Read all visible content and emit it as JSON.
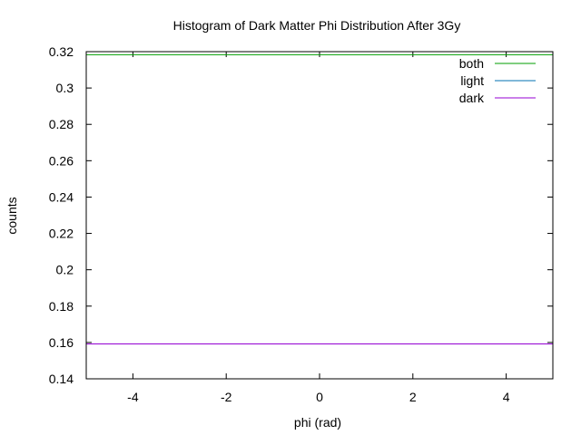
{
  "chart_data": {
    "type": "line",
    "title": "Histogram of Dark Matter Phi Distribution After 3Gy",
    "xlabel": "phi (rad)",
    "ylabel": "counts",
    "xlim": [
      -5,
      5
    ],
    "ylim": [
      0.14,
      0.32
    ],
    "xticks": [
      -4,
      -2,
      0,
      2,
      4
    ],
    "xtick_labels": [
      "-4",
      "-2",
      "0",
      "2",
      "4"
    ],
    "yticks": [
      0.14,
      0.16,
      0.18,
      0.2,
      0.22,
      0.24,
      0.26,
      0.28,
      0.3,
      0.32
    ],
    "ytick_labels": [
      "0.14",
      "0.16",
      "0.18",
      "0.2",
      "0.22",
      "0.24",
      "0.26",
      "0.28",
      "0.3",
      "0.32"
    ],
    "grid": false,
    "legend_position": "top-right",
    "series": [
      {
        "name": "both",
        "color": "#009e00",
        "x": [
          -5,
          5
        ],
        "y": [
          0.3183,
          0.3183
        ]
      },
      {
        "name": "light",
        "color": "#0072b2",
        "x": [
          -5,
          5
        ],
        "y": [
          0.1592,
          0.1592
        ]
      },
      {
        "name": "dark",
        "color": "#9400d3",
        "x": [
          -5,
          5
        ],
        "y": [
          0.1592,
          0.1592
        ]
      }
    ]
  }
}
